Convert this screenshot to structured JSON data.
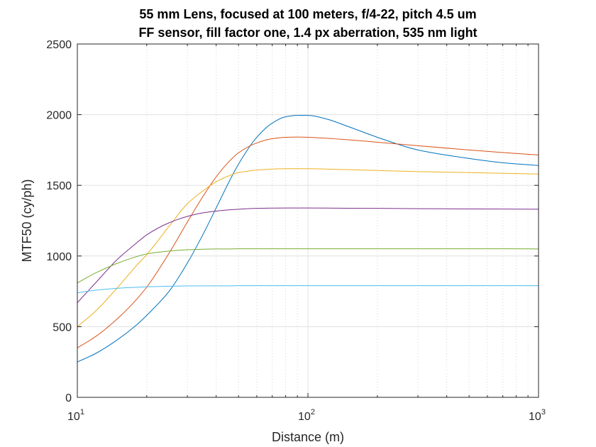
{
  "chart_data": {
    "type": "line",
    "title": "55 mm Lens, focused at 100 meters, f/4-22, pitch 4.5 um",
    "subtitle": "FF sensor, fill factor one, 1.4 px aberration, 535 nm light",
    "xlabel": "Distance (m)",
    "ylabel": "MTF50 (cy/ph)",
    "x_scale": "log",
    "xlim": [
      10,
      1000
    ],
    "ylim": [
      0,
      2500
    ],
    "x_ticks": [
      {
        "base": "10",
        "exp": "1"
      },
      {
        "base": "10",
        "exp": "2"
      },
      {
        "base": "10",
        "exp": "3"
      }
    ],
    "y_ticks": [
      "0",
      "500",
      "1000",
      "1500",
      "2000",
      "2500"
    ],
    "grid": true,
    "x": [
      10,
      12,
      15,
      18,
      20,
      25,
      30,
      35,
      40,
      45,
      50,
      60,
      70,
      80,
      90,
      100,
      120,
      150,
      200,
      300,
      500,
      700,
      1000
    ],
    "series": [
      {
        "color": "#0072BD",
        "values": [
          250,
          310,
          410,
          510,
          580,
          750,
          950,
          1150,
          1340,
          1510,
          1650,
          1840,
          1940,
          1985,
          1995,
          1995,
          1970,
          1915,
          1840,
          1750,
          1690,
          1660,
          1640
        ]
      },
      {
        "color": "#D95319",
        "values": [
          350,
          430,
          560,
          690,
          780,
          1020,
          1240,
          1420,
          1560,
          1660,
          1730,
          1800,
          1830,
          1840,
          1842,
          1840,
          1833,
          1822,
          1805,
          1780,
          1750,
          1732,
          1715
        ]
      },
      {
        "color": "#EDB120",
        "values": [
          500,
          610,
          780,
          930,
          1010,
          1210,
          1370,
          1460,
          1525,
          1565,
          1590,
          1608,
          1615,
          1618,
          1618,
          1618,
          1615,
          1611,
          1605,
          1597,
          1590,
          1585,
          1580
        ]
      },
      {
        "color": "#7E2F8E",
        "values": [
          670,
          810,
          980,
          1090,
          1150,
          1235,
          1280,
          1305,
          1318,
          1326,
          1331,
          1337,
          1339,
          1340,
          1340,
          1340,
          1339,
          1338,
          1337,
          1335,
          1333,
          1332,
          1331
        ]
      },
      {
        "color": "#77AC30",
        "values": [
          810,
          880,
          950,
          995,
          1015,
          1035,
          1044,
          1048,
          1050,
          1050,
          1051,
          1051,
          1051,
          1051,
          1051,
          1051,
          1051,
          1051,
          1051,
          1051,
          1051,
          1051,
          1050
        ]
      },
      {
        "color": "#4DBEEE",
        "values": [
          740,
          758,
          772,
          779,
          782,
          786,
          788,
          789,
          789,
          789,
          790,
          790,
          790,
          790,
          790,
          790,
          790,
          790,
          790,
          790,
          790,
          790,
          790
        ]
      }
    ]
  }
}
